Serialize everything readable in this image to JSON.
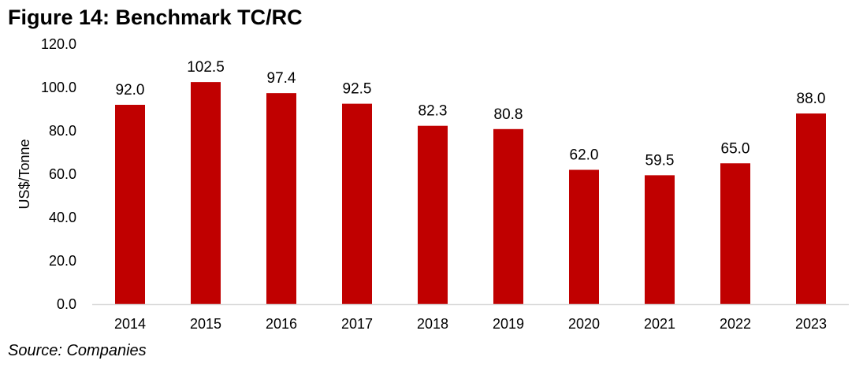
{
  "figure": {
    "title": "Figure 14: Benchmark TC/RC",
    "source": "Source: Companies"
  },
  "chart_data": {
    "type": "bar",
    "title": "Figure 14: Benchmark TC/RC",
    "xlabel": "",
    "ylabel": "US$/Tonne",
    "categories": [
      "2014",
      "2015",
      "2016",
      "2017",
      "2018",
      "2019",
      "2020",
      "2021",
      "2022",
      "2023"
    ],
    "values": [
      92.0,
      102.5,
      97.4,
      92.5,
      82.3,
      80.8,
      62.0,
      59.5,
      65.0,
      88.0
    ],
    "data_labels": [
      "92.0",
      "102.5",
      "97.4",
      "92.5",
      "82.3",
      "80.8",
      "62.0",
      "59.5",
      "65.0",
      "88.0"
    ],
    "ylim": [
      0,
      120
    ],
    "yticks": [
      "0.0",
      "20.0",
      "40.0",
      "60.0",
      "80.0",
      "100.0",
      "120.0"
    ],
    "grid": false,
    "legend": "none",
    "bar_color": "#c00000",
    "axis_color": "#d9d9d9"
  }
}
